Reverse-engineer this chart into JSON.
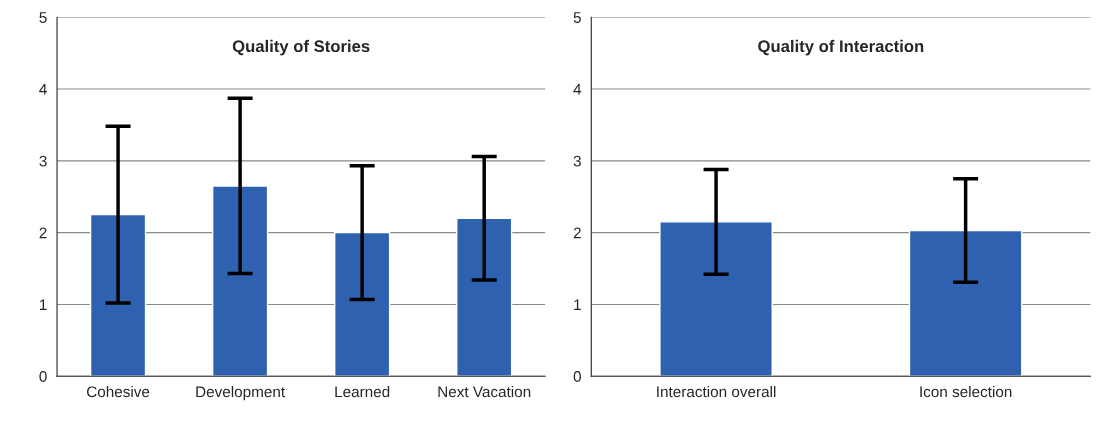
{
  "chart_data": [
    {
      "type": "bar",
      "title": "Quality of Stories",
      "categories": [
        "Cohesive",
        "Development",
        "Learned",
        "Next Vacation"
      ],
      "values": [
        2.25,
        2.65,
        2.0,
        2.2
      ],
      "errors": [
        1.23,
        1.22,
        0.93,
        0.86
      ],
      "color": "#2e62b0",
      "ylim": [
        0,
        5
      ],
      "yticks": [
        0,
        1,
        2,
        3,
        4,
        5
      ],
      "grid": "y"
    },
    {
      "type": "bar",
      "title": "Quality of Interaction",
      "categories": [
        "Interaction overall",
        "Icon selection"
      ],
      "values": [
        2.15,
        2.03
      ],
      "errors": [
        0.73,
        0.72
      ],
      "color": "#2e62b0",
      "ylim": [
        0,
        5
      ],
      "yticks": [
        0,
        1,
        2,
        3,
        4,
        5
      ],
      "grid": "y"
    }
  ]
}
